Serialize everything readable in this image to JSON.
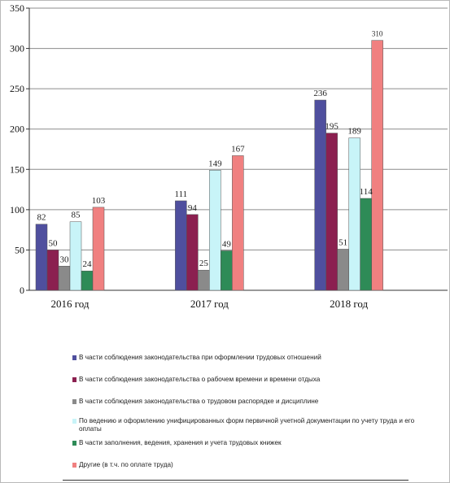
{
  "chart_data": {
    "type": "bar",
    "categories": [
      "2016 год",
      "2017 год",
      "2018 год"
    ],
    "ylim": [
      0,
      350
    ],
    "yticks": [
      0,
      50,
      100,
      150,
      200,
      250,
      300,
      350
    ],
    "grid": true,
    "legend_position": "bottom",
    "series": [
      {
        "name": "В части соблюдения законодательства при оформлении трудовых отношений",
        "color": "#4f4f9e",
        "values": [
          82,
          111,
          236
        ],
        "labels": [
          "82",
          "111",
          "236"
        ]
      },
      {
        "name": "В части соблюдения законодательства о рабочем времени и времени отдыха",
        "color": "#8b2050",
        "values": [
          50,
          94,
          195
        ],
        "labels": [
          "50",
          "94",
          "195"
        ]
      },
      {
        "name": "В части соблюдения законодательства о трудовом распорядке и дисциплине",
        "color": "#8a8a8a",
        "values": [
          30,
          25,
          51
        ],
        "labels": [
          "30",
          "25",
          "51"
        ]
      },
      {
        "name": "По ведению и оформлению унифицированных форм первичной учетной документации по учету труда и его оплаты",
        "color": "#c8f4f8",
        "values": [
          85,
          149,
          189
        ],
        "labels": [
          "85",
          "149",
          "189"
        ]
      },
      {
        "name": "В части заполнения, ведения, хранения и учета трудовых книжек",
        "color": "#2e8b57",
        "values": [
          24,
          49,
          114
        ],
        "labels": [
          "24",
          "49",
          "114"
        ]
      },
      {
        "name": "Другие (в т.ч. по оплате труда)",
        "color": "#f08080",
        "values": [
          103,
          167,
          310
        ],
        "labels": [
          "103",
          "167",
          "310"
        ]
      }
    ]
  }
}
